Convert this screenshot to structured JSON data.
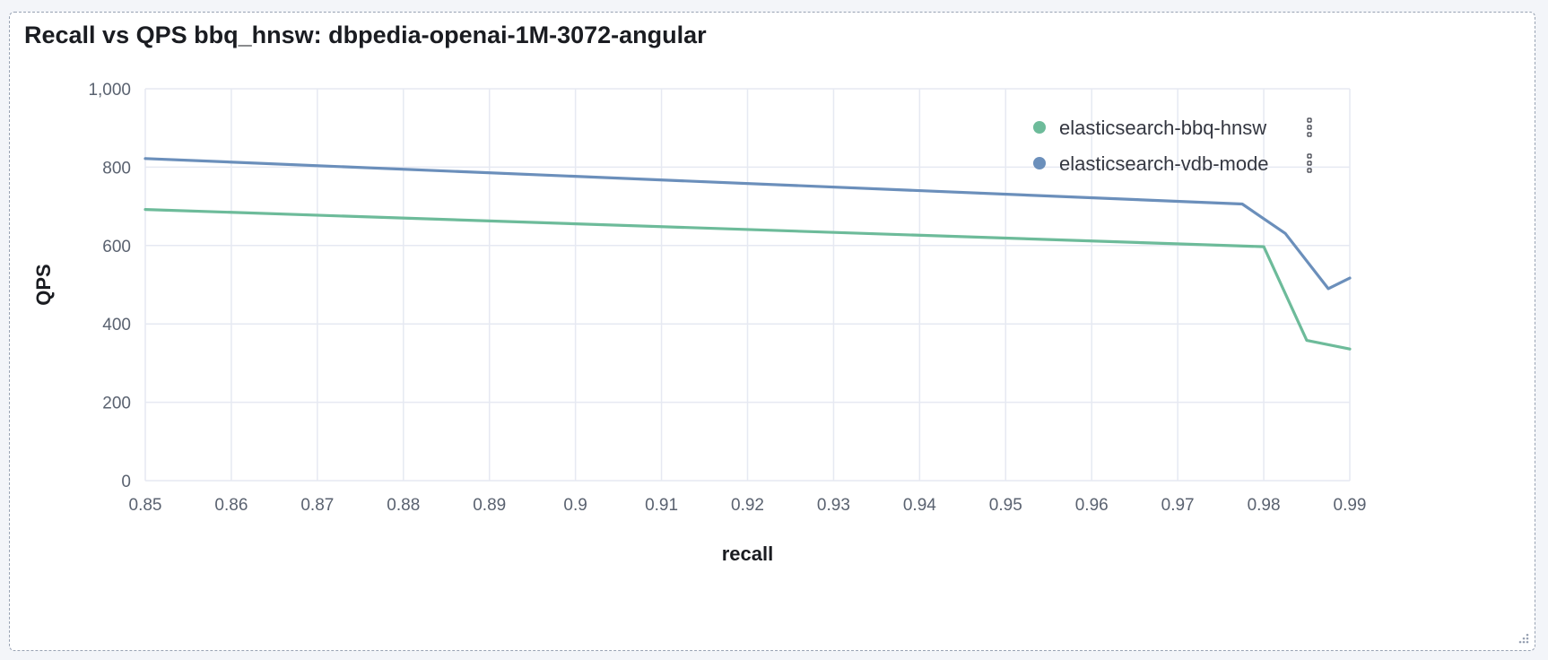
{
  "panel": {
    "title": "Recall vs QPS bbq_hnsw: dbpedia-openai-1M-3072-angular"
  },
  "colors": {
    "series_green": "#6dbb9a",
    "series_blue": "#6b8fbb",
    "grid": "#e6e9f2",
    "tick_text": "#5a6270",
    "axis_title": "#1a1c21"
  },
  "icons": {
    "legend_action": "vertical-ellipsis-icon",
    "resize": "resize-handle-icon"
  },
  "chart_data": {
    "type": "line",
    "title": "Recall vs QPS bbq_hnsw: dbpedia-openai-1M-3072-angular",
    "xlabel": "recall",
    "ylabel": "QPS",
    "xlim": [
      0.85,
      0.99
    ],
    "ylim": [
      0,
      1000
    ],
    "x_ticks": [
      "0.85",
      "0.86",
      "0.87",
      "0.88",
      "0.89",
      "0.9",
      "0.91",
      "0.92",
      "0.93",
      "0.94",
      "0.95",
      "0.96",
      "0.97",
      "0.98",
      "0.99"
    ],
    "y_ticks": [
      "0",
      "200",
      "400",
      "600",
      "800",
      "1,000"
    ],
    "x_tick_values": [
      0.85,
      0.86,
      0.87,
      0.88,
      0.89,
      0.9,
      0.91,
      0.92,
      0.93,
      0.94,
      0.95,
      0.96,
      0.97,
      0.98,
      0.99
    ],
    "y_tick_values": [
      0,
      200,
      400,
      600,
      800,
      1000
    ],
    "grid": true,
    "legend_position": "top-right",
    "series": [
      {
        "name": "elasticsearch-bbq-hnsw",
        "color": "#6dbb9a",
        "points": [
          [
            0.85,
            692
          ],
          [
            0.98,
            597
          ],
          [
            0.985,
            358
          ],
          [
            0.99,
            336
          ]
        ]
      },
      {
        "name": "elasticsearch-vdb-mode",
        "color": "#6b8fbb",
        "points": [
          [
            0.85,
            822
          ],
          [
            0.9775,
            706
          ],
          [
            0.9825,
            631
          ],
          [
            0.9875,
            490
          ],
          [
            0.99,
            517
          ]
        ]
      }
    ]
  }
}
